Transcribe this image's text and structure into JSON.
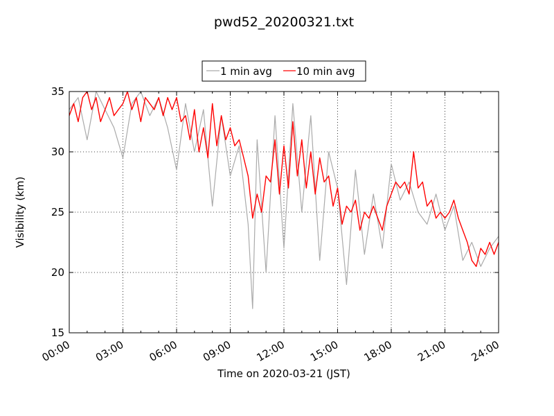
{
  "chart_data": {
    "type": "line",
    "title": "pwd52_20200321.txt",
    "xlabel": "Time on 2020-03-21 (JST)",
    "ylabel": "Visibility (km)",
    "xlim": [
      0,
      24
    ],
    "ylim": [
      15,
      35
    ],
    "x_unit": "hours (JST)",
    "xticks": [
      {
        "value": 0,
        "label": "00:00"
      },
      {
        "value": 3,
        "label": "03:00"
      },
      {
        "value": 6,
        "label": "06:00"
      },
      {
        "value": 9,
        "label": "09:00"
      },
      {
        "value": 12,
        "label": "12:00"
      },
      {
        "value": 15,
        "label": "15:00"
      },
      {
        "value": 18,
        "label": "18:00"
      },
      {
        "value": 21,
        "label": "21:00"
      },
      {
        "value": 24,
        "label": "24:00"
      }
    ],
    "yticks": [
      {
        "value": 15,
        "label": "15"
      },
      {
        "value": 20,
        "label": "20"
      },
      {
        "value": 25,
        "label": "25"
      },
      {
        "value": 30,
        "label": "30"
      },
      {
        "value": 35,
        "label": "35"
      }
    ],
    "grid": true,
    "legend_position": "top-center",
    "series": [
      {
        "name": "1 min avg",
        "color": "#aaaaaa",
        "x": [
          0.0,
          0.5,
          1.0,
          1.5,
          2.0,
          2.5,
          3.0,
          3.5,
          4.0,
          4.5,
          5.0,
          5.5,
          6.0,
          6.5,
          7.0,
          7.5,
          8.0,
          8.5,
          9.0,
          9.5,
          10.0,
          10.25,
          10.5,
          11.0,
          11.5,
          12.0,
          12.5,
          13.0,
          13.5,
          14.0,
          14.5,
          15.0,
          15.5,
          16.0,
          16.5,
          17.0,
          17.5,
          18.0,
          18.5,
          19.0,
          19.5,
          20.0,
          20.5,
          21.0,
          21.5,
          22.0,
          22.5,
          23.0,
          23.5,
          24.0
        ],
        "y": [
          33.5,
          34.5,
          31.0,
          35.0,
          33.5,
          32.0,
          29.5,
          34.0,
          35.0,
          33.0,
          34.5,
          32.0,
          28.5,
          34.0,
          30.0,
          33.5,
          25.5,
          33.0,
          28.0,
          30.5,
          24.0,
          17.0,
          31.0,
          20.0,
          33.0,
          22.0,
          34.0,
          25.0,
          33.0,
          21.0,
          30.0,
          27.0,
          19.0,
          28.5,
          21.5,
          26.5,
          22.0,
          29.0,
          26.0,
          27.5,
          25.0,
          24.0,
          26.5,
          23.5,
          25.5,
          21.0,
          22.5,
          20.5,
          22.0,
          23.0
        ]
      },
      {
        "name": "10 min avg",
        "color": "#ff0000",
        "x": [
          0.0,
          0.25,
          0.5,
          0.75,
          1.0,
          1.25,
          1.5,
          1.75,
          2.0,
          2.25,
          2.5,
          2.75,
          3.0,
          3.25,
          3.5,
          3.75,
          4.0,
          4.25,
          4.5,
          4.75,
          5.0,
          5.25,
          5.5,
          5.75,
          6.0,
          6.25,
          6.5,
          6.75,
          7.0,
          7.25,
          7.5,
          7.75,
          8.0,
          8.25,
          8.5,
          8.75,
          9.0,
          9.25,
          9.5,
          9.75,
          10.0,
          10.25,
          10.5,
          10.75,
          11.0,
          11.25,
          11.5,
          11.75,
          12.0,
          12.25,
          12.5,
          12.75,
          13.0,
          13.25,
          13.5,
          13.75,
          14.0,
          14.25,
          14.5,
          14.75,
          15.0,
          15.25,
          15.5,
          15.75,
          16.0,
          16.25,
          16.5,
          16.75,
          17.0,
          17.25,
          17.5,
          17.75,
          18.0,
          18.25,
          18.5,
          18.75,
          19.0,
          19.25,
          19.5,
          19.75,
          20.0,
          20.25,
          20.5,
          20.75,
          21.0,
          21.25,
          21.5,
          21.75,
          22.0,
          22.25,
          22.5,
          22.75,
          23.0,
          23.25,
          23.5,
          23.75,
          24.0
        ],
        "y": [
          33.0,
          34.0,
          32.5,
          34.5,
          35.0,
          33.5,
          34.5,
          32.5,
          33.5,
          34.5,
          33.0,
          33.5,
          34.0,
          35.0,
          33.5,
          34.5,
          32.5,
          34.5,
          34.0,
          33.5,
          34.5,
          33.0,
          34.5,
          33.5,
          34.5,
          32.5,
          33.0,
          31.0,
          33.5,
          30.0,
          32.0,
          29.5,
          34.0,
          30.5,
          33.0,
          31.0,
          32.0,
          30.5,
          31.0,
          29.5,
          28.0,
          24.5,
          26.5,
          25.0,
          28.0,
          27.5,
          31.0,
          26.5,
          30.5,
          27.0,
          32.5,
          28.0,
          31.0,
          27.0,
          30.0,
          26.5,
          29.5,
          27.5,
          28.0,
          25.5,
          27.0,
          24.0,
          25.5,
          25.0,
          26.0,
          23.5,
          25.0,
          24.5,
          25.5,
          24.5,
          23.5,
          25.5,
          26.5,
          27.5,
          27.0,
          27.5,
          26.5,
          30.0,
          27.0,
          27.5,
          25.5,
          26.0,
          24.5,
          25.0,
          24.5,
          25.0,
          26.0,
          24.5,
          23.5,
          22.5,
          21.0,
          20.5,
          22.0,
          21.5,
          22.5,
          21.5,
          22.5
        ]
      }
    ]
  }
}
